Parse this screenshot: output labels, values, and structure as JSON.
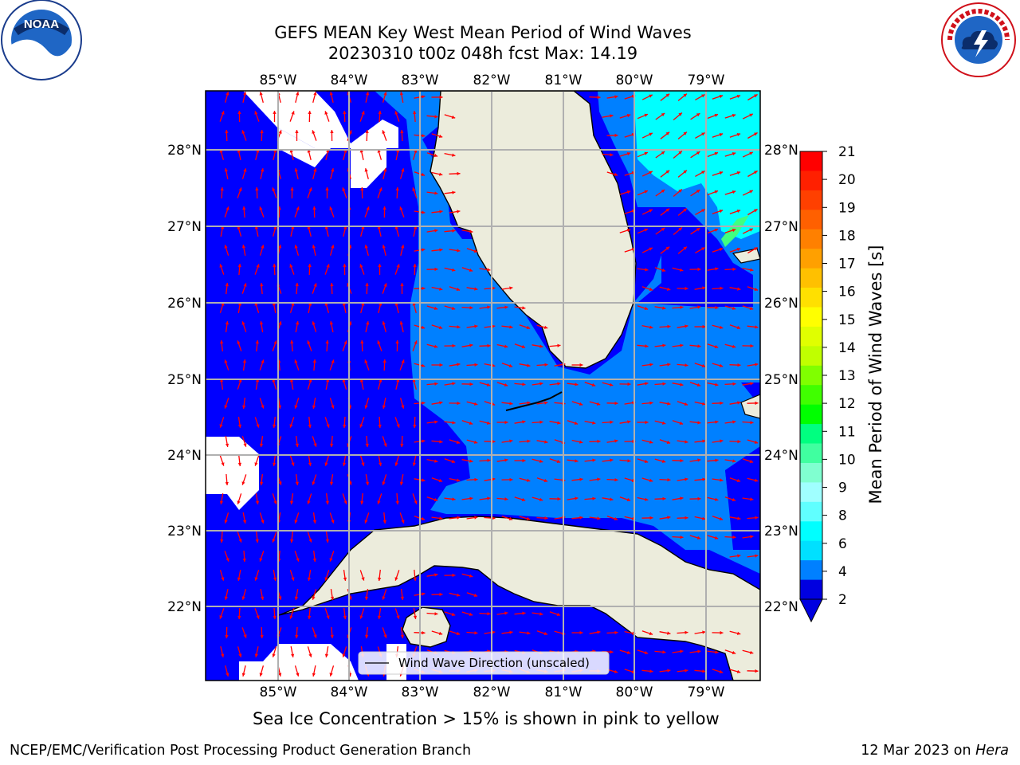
{
  "title": {
    "line1": "GEFS MEAN Key West Mean Period of Wind Waves",
    "line2": "20230310 t00z 048h fcst   Max: 14.19"
  },
  "map": {
    "lon_labels": [
      "85°W",
      "84°W",
      "83°W",
      "82°W",
      "81°W",
      "80°W",
      "79°W"
    ],
    "lat_labels": [
      "28°N",
      "27°N",
      "26°N",
      "25°N",
      "24°N",
      "23°N",
      "22°N"
    ],
    "legend_label": "Wind Wave Direction (unscaled)",
    "colors": {
      "land": "#ececdc",
      "ocean_deep": "#0000ff",
      "ocean_mid": "#0080ff",
      "ocean_light": "#00ffff",
      "arrow": "#ff0000",
      "grid": "#b0b0b0"
    }
  },
  "colorbar": {
    "label": "Mean Period of Wind Waves [s]",
    "ticks": [
      "21",
      "20",
      "19",
      "18",
      "17",
      "16",
      "15",
      "14",
      "13",
      "12",
      "11",
      "10",
      "9",
      "8",
      "6",
      "4",
      "2"
    ],
    "colors": [
      "#ff0000",
      "#ff2000",
      "#ff4000",
      "#ff6000",
      "#ff8000",
      "#ffa000",
      "#ffc000",
      "#ffe000",
      "#ffff00",
      "#e0ff00",
      "#c0ff00",
      "#80ff00",
      "#40ff00",
      "#00ff00",
      "#00ff80",
      "#40ffa0",
      "#80ffd0",
      "#a0ffff",
      "#60ffff",
      "#00ffff",
      "#00e0ff",
      "#0080ff",
      "#0000e0"
    ]
  },
  "footnote": "Sea Ice Concentration > 15% is shown in pink to yellow",
  "footer": {
    "left": "NCEP/EMC/Verification Post Processing Product Generation Branch",
    "right_date": "12 Mar 2023 on ",
    "right_host": "Hera"
  },
  "logos": {
    "noaa_text": "NOAA",
    "nws_text": "NATIONAL WEATHER SERVICE"
  }
}
